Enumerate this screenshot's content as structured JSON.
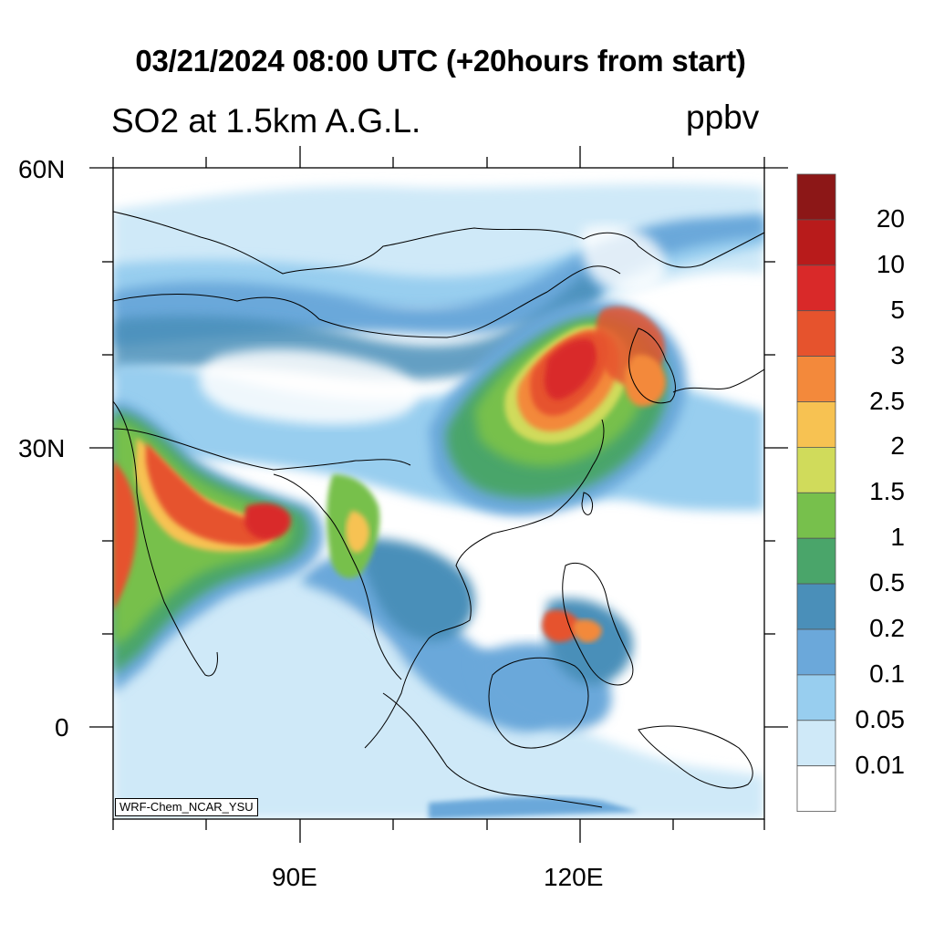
{
  "title": "03/21/2024 08:00 UTC (+20hours from start)",
  "subtitle": "SO2 at 1.5km A.G.L.",
  "units": "ppbv",
  "credit": "WRF-Chem_NCAR_YSU",
  "axes": {
    "lat_labels": [
      "60N",
      "30N",
      "0"
    ],
    "lon_labels": [
      "90E",
      "120E"
    ]
  },
  "colorbar": {
    "labels": [
      "20",
      "10",
      "5",
      "3",
      "2.5",
      "2",
      "1.5",
      "1",
      "0.5",
      "0.2",
      "0.1",
      "0.05",
      "0.01"
    ],
    "colors": [
      "#8c1717",
      "#b81b1b",
      "#d92929",
      "#e6532d",
      "#f3893b",
      "#f7c252",
      "#d0db5b",
      "#77c04c",
      "#4aa56a",
      "#4a8fb9",
      "#6ba8da",
      "#98ceef",
      "#cfe9f8",
      "#ffffff"
    ]
  }
}
